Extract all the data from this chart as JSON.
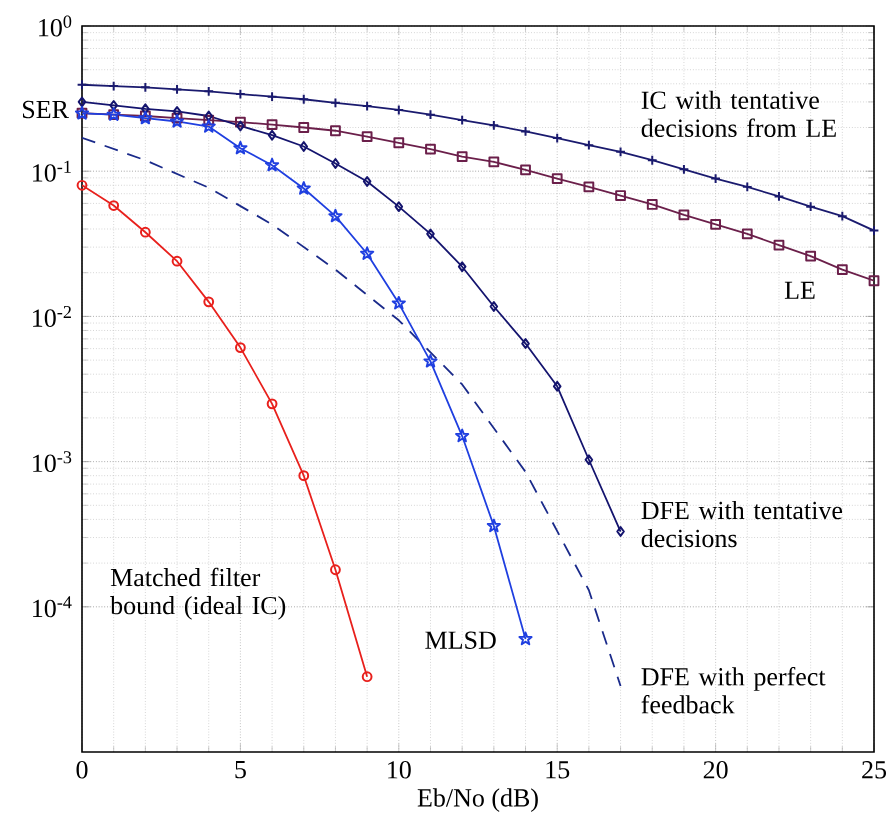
{
  "chart_data": {
    "type": "line",
    "xlabel": "Eb/No (dB)",
    "ylabel": "SER",
    "log": "y",
    "grid": true,
    "xlim": [
      0,
      25
    ],
    "xticks": [
      0,
      5,
      10,
      15,
      20,
      25
    ],
    "ylim": [
      1e-05,
      1
    ],
    "yticks": [
      {
        "value": 0.0001,
        "label": "10$^{-4}$"
      },
      {
        "value": 0.001,
        "label": "10$^{-3}$"
      },
      {
        "value": 0.01,
        "label": "10$^{-2}$"
      },
      {
        "value": 0.1,
        "label": "10$^{-1}$"
      },
      {
        "value": 1,
        "label": "10$^{0}$"
      }
    ],
    "series": [
      {
        "name": "IC with tentative decisions from LE",
        "color": "#1a1a6e",
        "marker": "cross",
        "line_style": "solid",
        "x": [
          0,
          1,
          2,
          3,
          4,
          5,
          6,
          7,
          8,
          9,
          10,
          11,
          12,
          13,
          14,
          15,
          16,
          17,
          18,
          19,
          20,
          21,
          22,
          23,
          24,
          25
        ],
        "values": [
          0.394,
          0.386,
          0.378,
          0.366,
          0.355,
          0.34,
          0.326,
          0.313,
          0.296,
          0.281,
          0.264,
          0.245,
          0.225,
          0.207,
          0.188,
          0.169,
          0.151,
          0.136,
          0.119,
          0.103,
          0.089,
          0.078,
          0.067,
          0.057,
          0.049,
          0.039
        ]
      },
      {
        "name": "LE",
        "color": "#6b1f4a",
        "marker": "square",
        "line_style": "solid",
        "x": [
          0,
          1,
          2,
          3,
          4,
          5,
          6,
          7,
          8,
          9,
          10,
          11,
          12,
          13,
          14,
          15,
          16,
          17,
          18,
          19,
          20,
          21,
          22,
          23,
          24,
          25
        ],
        "values": [
          0.251,
          0.245,
          0.24,
          0.232,
          0.225,
          0.218,
          0.209,
          0.2,
          0.19,
          0.173,
          0.157,
          0.142,
          0.126,
          0.116,
          0.102,
          0.089,
          0.078,
          0.068,
          0.059,
          0.05,
          0.043,
          0.037,
          0.031,
          0.026,
          0.021,
          0.0176
        ]
      },
      {
        "name": "DFE with tentative decisions",
        "color": "#14146e",
        "marker": "diamond",
        "line_style": "solid",
        "x": [
          0,
          1,
          2,
          3,
          4,
          5,
          6,
          7,
          8,
          9,
          10,
          11,
          12,
          13,
          14,
          15,
          16,
          17
        ],
        "values": [
          0.3,
          0.284,
          0.269,
          0.258,
          0.24,
          0.205,
          0.177,
          0.148,
          0.113,
          0.085,
          0.057,
          0.037,
          0.022,
          0.0117,
          0.0065,
          0.0033,
          0.00103,
          0.00033
        ]
      },
      {
        "name": "DFE with perfect feedback",
        "color": "#1a2a8a",
        "marker": "none",
        "line_style": "dashed",
        "x": [
          0,
          2,
          4,
          6,
          8,
          10,
          12,
          14,
          16,
          17
        ],
        "values": [
          0.17,
          0.119,
          0.077,
          0.043,
          0.021,
          0.0094,
          0.0034,
          0.00085,
          0.00013,
          2.85e-05
        ]
      },
      {
        "name": "MLSD",
        "color": "#1f3fe0",
        "marker": "star",
        "line_style": "solid",
        "x": [
          0,
          1,
          2,
          3,
          4,
          5,
          6,
          7,
          8,
          9,
          10,
          11,
          12,
          13,
          14
        ],
        "values": [
          0.25,
          0.245,
          0.232,
          0.22,
          0.203,
          0.144,
          0.11,
          0.076,
          0.049,
          0.027,
          0.0123,
          0.0049,
          0.0015,
          0.00036,
          6e-05
        ]
      },
      {
        "name": "Matched filter bound (ideal IC)",
        "color": "#e8201c",
        "marker": "circle",
        "line_style": "solid",
        "x": [
          0,
          1,
          2,
          3,
          4,
          5,
          6,
          7,
          8,
          9
        ],
        "values": [
          0.08,
          0.058,
          0.038,
          0.024,
          0.0126,
          0.0061,
          0.0025,
          0.0008,
          0.00018,
          3.3e-05
        ]
      }
    ]
  }
}
